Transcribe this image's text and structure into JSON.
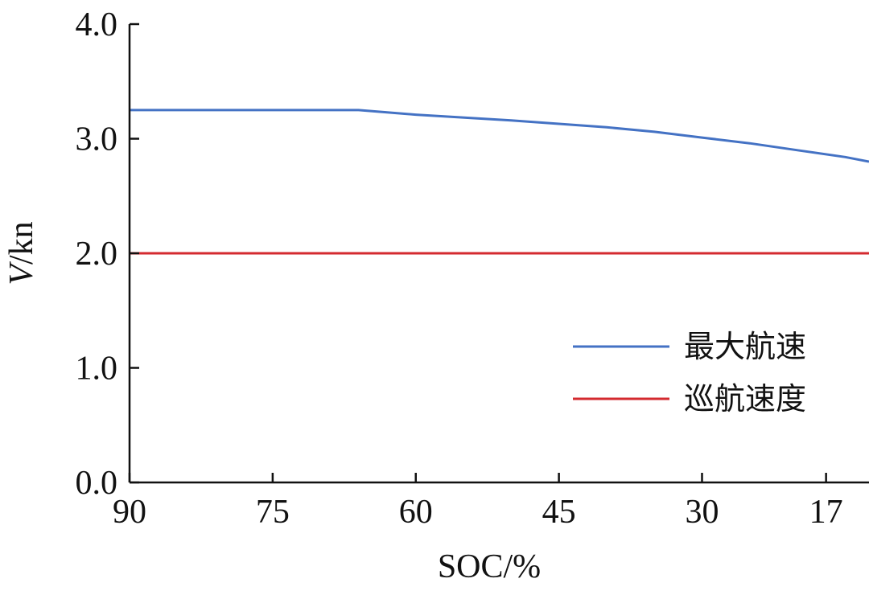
{
  "chart_data": {
    "type": "line",
    "xlabel": "SOC/%",
    "ylabel_italic": "V",
    "ylabel_unit": "/kn",
    "x_ticks": [
      90,
      75,
      60,
      45,
      30,
      17
    ],
    "x_tick_labels": [
      "90",
      "75",
      "60",
      "45",
      "30",
      "17"
    ],
    "xlim": [
      90,
      12.5
    ],
    "y_ticks": [
      0.0,
      1.0,
      2.0,
      3.0,
      4.0
    ],
    "y_tick_labels": [
      "0.0",
      "1.0",
      "2.0",
      "3.0",
      "4.0"
    ],
    "ylim": [
      0,
      4.0
    ],
    "grid": false,
    "legend_position": "right-center",
    "series": [
      {
        "name": "最大航速",
        "color": "#4472C4",
        "x": [
          90,
          80,
          70,
          66,
          60,
          50,
          45,
          40,
          35,
          30,
          25,
          20,
          15,
          12.5
        ],
        "y": [
          3.25,
          3.25,
          3.25,
          3.25,
          3.21,
          3.16,
          3.13,
          3.1,
          3.06,
          3.01,
          2.96,
          2.9,
          2.84,
          2.8
        ]
      },
      {
        "name": "巡航速度",
        "color": "#D42A2F",
        "x": [
          90,
          12.5
        ],
        "y": [
          2.0,
          2.0
        ]
      }
    ]
  }
}
